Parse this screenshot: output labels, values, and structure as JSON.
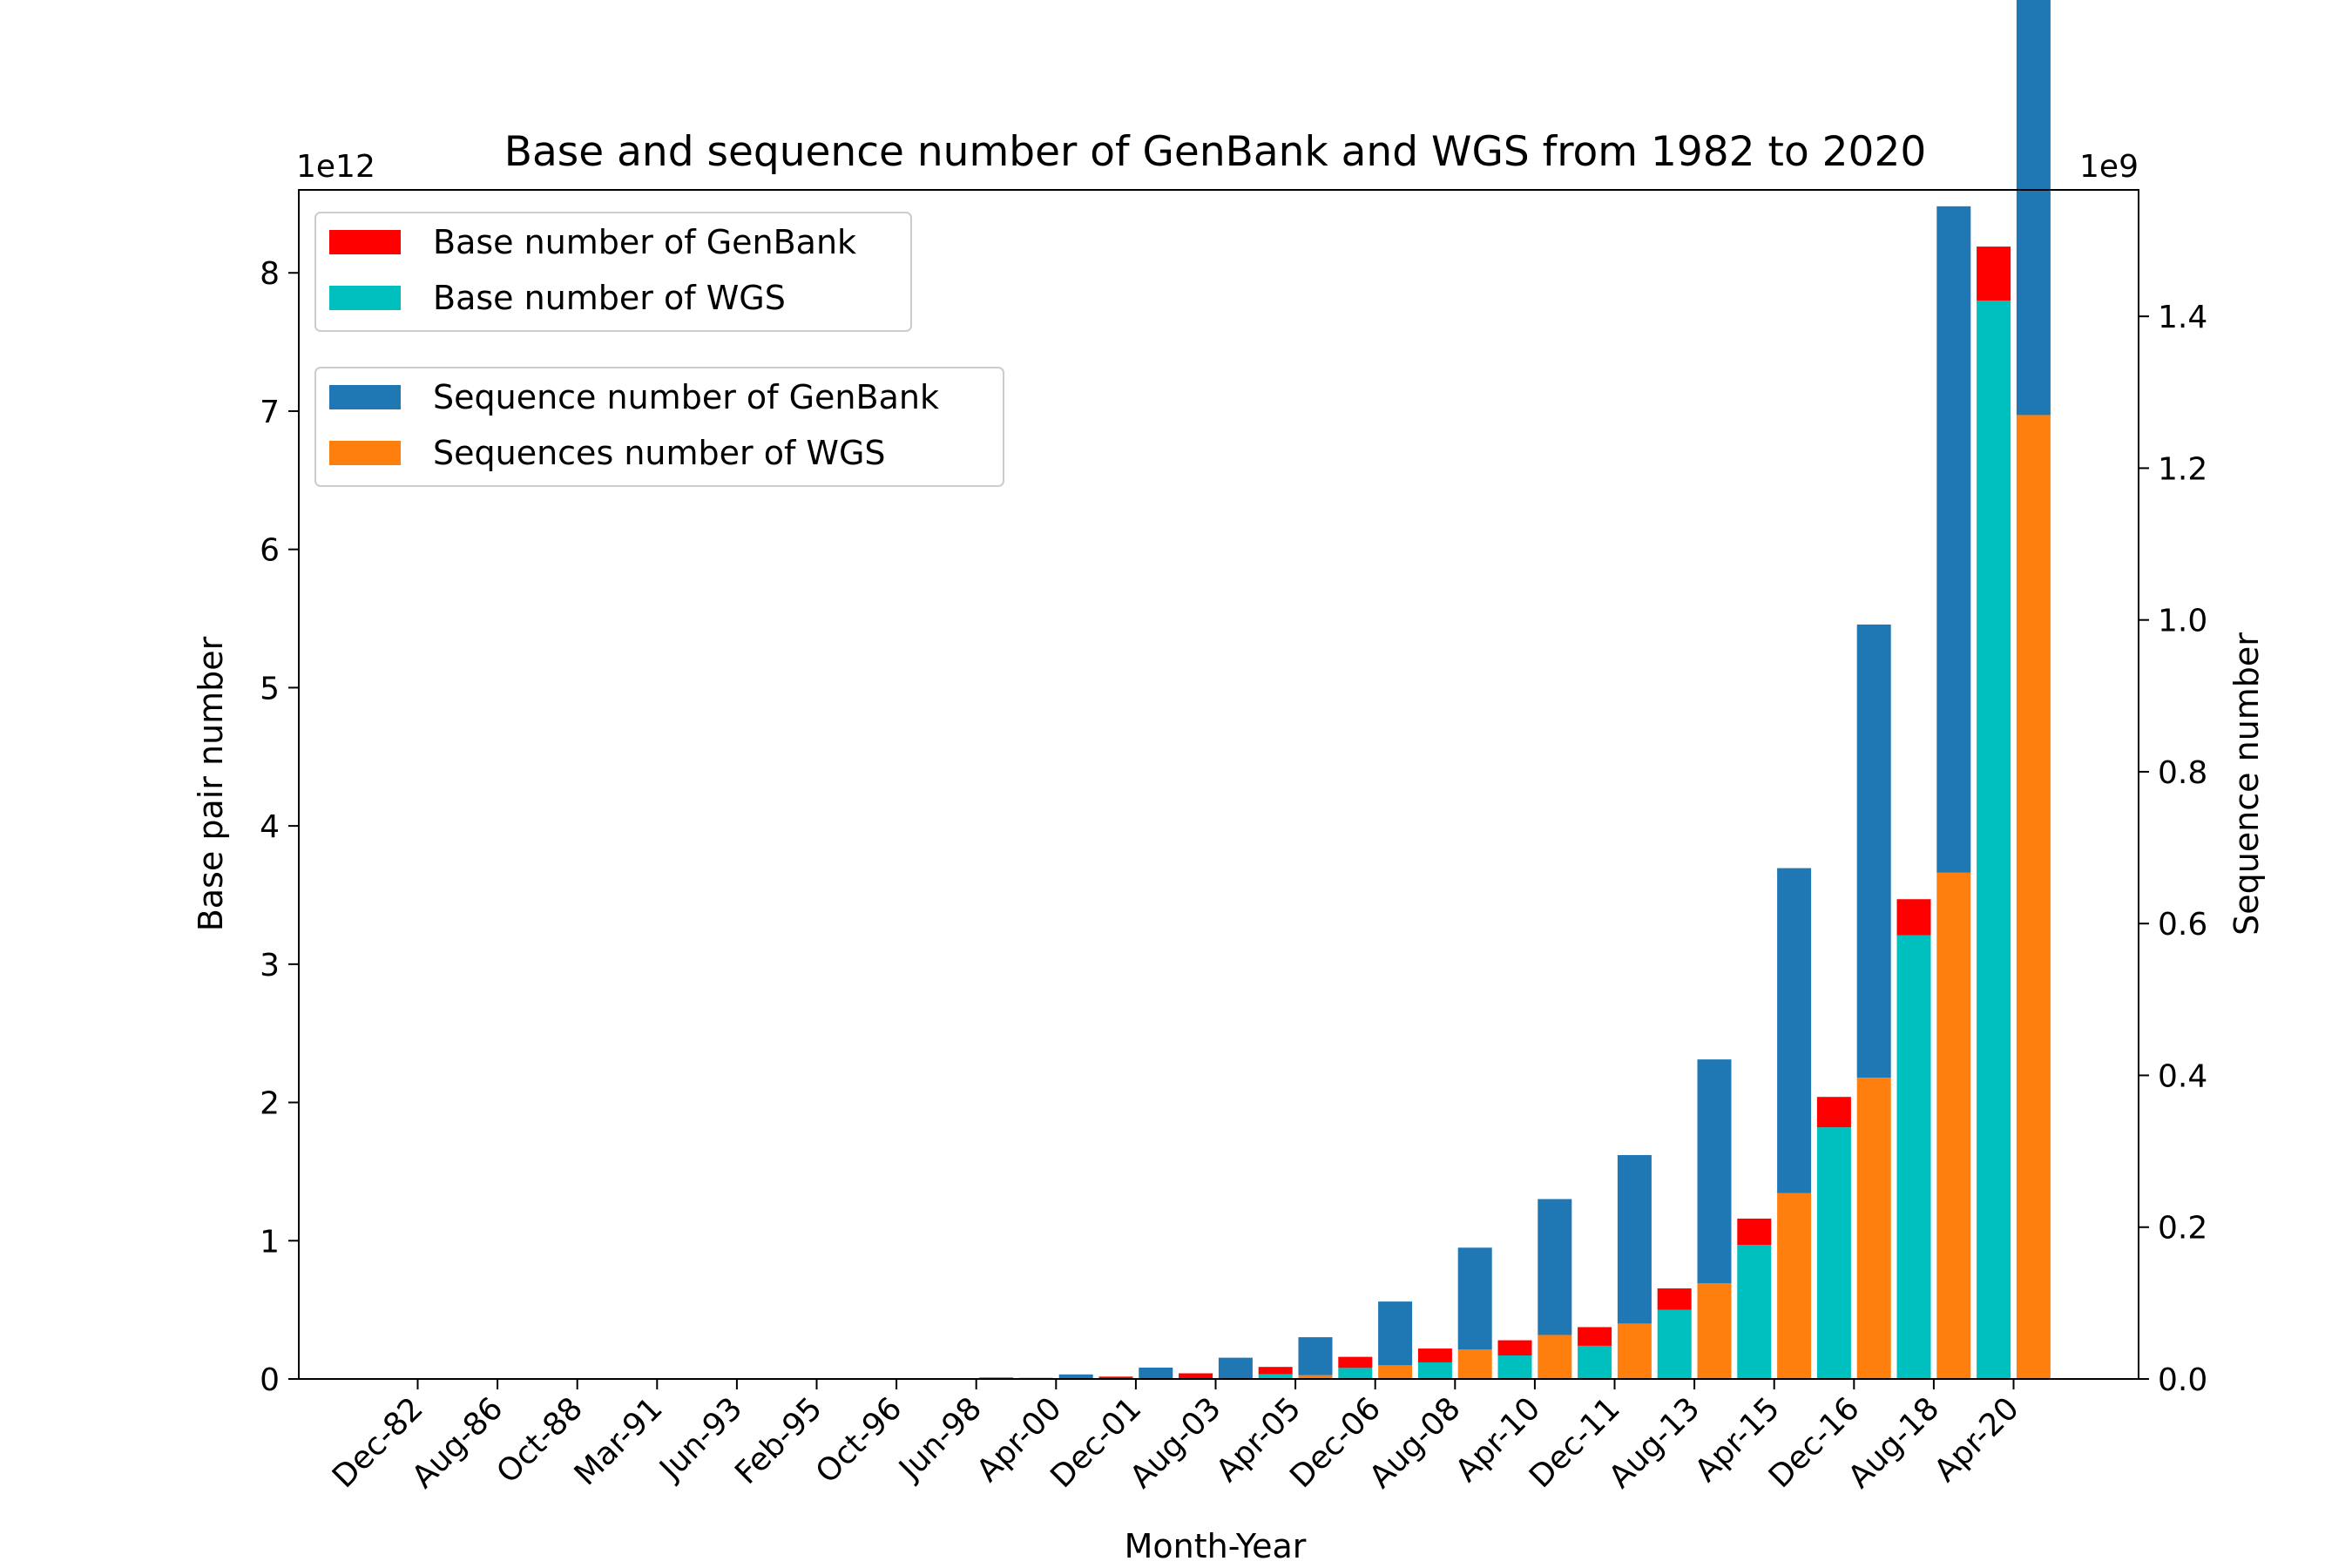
{
  "chart_data": {
    "type": "bar",
    "title": "Base and sequence number of GenBank and WGS from 1982 to 2020",
    "xlabel": "Month-Year",
    "ylabel_left": "Base pair number",
    "ylabel_right": "Sequence number",
    "left_axis_offset": "1e12",
    "right_axis_offset": "1e9",
    "ylim_left": [
      0,
      8.6
    ],
    "ylim_right": [
      0,
      1.5666
    ],
    "yticks_left": [
      "0",
      "1",
      "2",
      "3",
      "4",
      "5",
      "6",
      "7",
      "8"
    ],
    "yticks_right": [
      "0.0",
      "0.2",
      "0.4",
      "0.6",
      "0.8",
      "1.0",
      "1.2",
      "1.4"
    ],
    "grid": false,
    "categories": [
      "Dec-82",
      "Aug-86",
      "Oct-88",
      "Mar-91",
      "Jun-93",
      "Feb-95",
      "Oct-96",
      "Jun-98",
      "Apr-00",
      "Dec-01",
      "Aug-03",
      "Apr-05",
      "Dec-06",
      "Aug-08",
      "Apr-10",
      "Dec-11",
      "Aug-13",
      "Apr-15",
      "Dec-16",
      "Aug-18",
      "Apr-20"
    ],
    "series": [
      {
        "name": "Base number of GenBank",
        "axis": "left",
        "color": "#ff0000",
        "values": [
          7e-07,
          1e-05,
          3e-05,
          0.0001,
          0.0002,
          0.0004,
          0.001,
          0.003,
          0.008,
          0.017,
          0.036,
          0.052,
          0.08,
          0.1,
          0.11,
          0.135,
          0.155,
          0.19,
          0.22,
          0.26,
          0.39
        ]
      },
      {
        "name": "Base number of WGS",
        "axis": "left",
        "color": "#00bfbf",
        "values": [
          0,
          0,
          0,
          0,
          0,
          0,
          0,
          0,
          0,
          0,
          0.005,
          0.035,
          0.08,
          0.12,
          0.17,
          0.24,
          0.5,
          0.97,
          1.82,
          3.21,
          7.8
        ]
      },
      {
        "name": "Sequence number of GenBank",
        "axis": "right",
        "color": "#1f77b4",
        "values": [
          6e-07,
          1e-05,
          3e-05,
          6e-05,
          0.0001,
          0.0002,
          0.0005,
          0.002,
          0.006,
          0.015,
          0.028,
          0.05,
          0.084,
          0.134,
          0.179,
          0.222,
          0.295,
          0.428,
          0.597,
          0.878,
          1.49
        ]
      },
      {
        "name": "Sequences number of WGS",
        "axis": "right",
        "color": "#ff7f0e",
        "values": [
          0,
          0,
          0,
          0,
          0,
          0,
          0,
          0,
          0,
          0,
          0,
          0.005,
          0.018,
          0.039,
          0.058,
          0.073,
          0.126,
          0.245,
          0.397,
          0.667,
          1.27
        ]
      }
    ],
    "legends": [
      {
        "placement": "upper-left",
        "entries": [
          "Base number of GenBank",
          "Base number of WGS"
        ]
      },
      {
        "placement": "upper-left-below",
        "entries": [
          "Sequence number of GenBank",
          "Sequences number of WGS"
        ]
      }
    ]
  }
}
